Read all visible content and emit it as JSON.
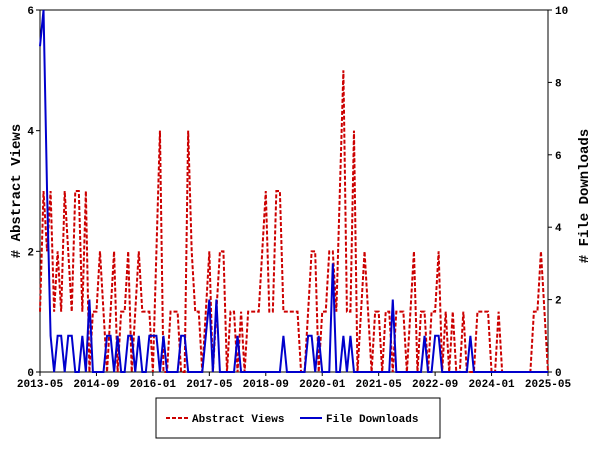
{
  "chart_data": {
    "type": "line",
    "y_label": "# Abstract Views",
    "y2_label": "# File Downloads",
    "x": [
      "2013-05",
      "2013-06",
      "2013-07",
      "2013-08",
      "2013-09",
      "2013-10",
      "2013-11",
      "2013-12",
      "2014-01",
      "2014-02",
      "2014-03",
      "2014-04",
      "2014-05",
      "2014-06",
      "2014-07",
      "2014-08",
      "2014-09",
      "2014-10",
      "2014-11",
      "2014-12",
      "2015-01",
      "2015-02",
      "2015-03",
      "2015-04",
      "2015-05",
      "2015-06",
      "2015-07",
      "2015-08",
      "2015-09",
      "2015-10",
      "2015-11",
      "2015-12",
      "2016-01",
      "2016-02",
      "2016-03",
      "2016-04",
      "2016-05",
      "2016-06",
      "2016-07",
      "2016-08",
      "2016-09",
      "2016-10",
      "2016-11",
      "2016-12",
      "2017-01",
      "2017-02",
      "2017-03",
      "2017-04",
      "2017-05",
      "2017-06",
      "2017-07",
      "2017-08",
      "2017-09",
      "2017-10",
      "2017-11",
      "2017-12",
      "2018-01",
      "2018-02",
      "2018-03",
      "2018-04",
      "2018-05",
      "2018-06",
      "2018-07",
      "2018-08",
      "2018-09",
      "2018-10",
      "2018-11",
      "2018-12",
      "2019-01",
      "2019-02",
      "2019-03",
      "2019-04",
      "2019-05",
      "2019-06",
      "2019-07",
      "2019-08",
      "2019-09",
      "2019-10",
      "2019-11",
      "2019-12",
      "2020-01",
      "2020-02",
      "2020-03",
      "2020-04",
      "2020-05",
      "2020-06",
      "2020-07",
      "2020-08",
      "2020-09",
      "2020-10",
      "2020-11",
      "2020-12",
      "2021-01",
      "2021-02",
      "2021-03",
      "2021-04",
      "2021-05",
      "2021-06",
      "2021-07",
      "2021-08",
      "2021-09",
      "2021-10",
      "2021-11",
      "2021-12",
      "2022-01",
      "2022-02",
      "2022-03",
      "2022-04",
      "2022-05",
      "2022-06",
      "2022-07",
      "2022-08",
      "2022-09",
      "2022-10",
      "2022-11",
      "2022-12",
      "2023-01",
      "2023-02",
      "2023-03",
      "2023-04",
      "2023-05",
      "2023-06",
      "2023-07",
      "2023-08",
      "2023-09",
      "2023-10",
      "2023-11",
      "2023-12",
      "2024-01",
      "2024-02",
      "2024-03",
      "2024-04",
      "2024-05",
      "2024-06",
      "2024-07",
      "2024-08",
      "2024-09",
      "2024-10",
      "2024-11",
      "2024-12",
      "2025-01",
      "2025-02",
      "2025-03",
      "2025-04",
      "2025-05"
    ],
    "series": [
      {
        "name": "Abstract Views",
        "color": "#cc0000",
        "dash": true,
        "values": [
          1,
          3,
          2,
          3,
          1,
          2,
          1,
          3,
          2,
          1,
          3,
          3,
          1,
          3,
          0,
          1,
          1,
          2,
          1,
          0,
          1,
          2,
          0,
          1,
          1,
          2,
          0,
          1,
          2,
          1,
          1,
          1,
          0,
          2,
          4,
          0,
          0,
          1,
          1,
          1,
          0,
          0,
          4,
          2,
          1,
          1,
          0,
          1,
          2,
          0,
          1,
          2,
          2,
          0,
          1,
          1,
          0,
          1,
          0,
          1,
          1,
          1,
          1,
          2,
          3,
          1,
          1,
          3,
          3,
          1,
          1,
          1,
          1,
          1,
          0,
          0,
          1,
          2,
          2,
          0,
          1,
          1,
          2,
          2,
          1,
          3,
          5,
          1,
          1,
          4,
          0,
          1,
          2,
          1,
          0,
          1,
          1,
          0,
          1,
          1,
          0,
          1,
          1,
          1,
          0,
          1,
          2,
          0,
          1,
          1,
          0,
          1,
          1,
          2,
          0,
          1,
          0,
          1,
          0,
          0,
          1,
          0,
          0,
          0,
          1,
          1,
          1,
          1,
          0,
          0,
          1,
          0,
          0,
          0,
          0,
          0,
          0,
          0,
          0,
          0,
          1,
          1,
          2,
          1,
          0
        ]
      },
      {
        "name": "File Downloads",
        "color": "#0000cc",
        "axis": "y2",
        "values": [
          9,
          10,
          5,
          1,
          0,
          1,
          1,
          0,
          1,
          1,
          0,
          0,
          1,
          0,
          2,
          0,
          0,
          0,
          0,
          1,
          1,
          0,
          1,
          0,
          0,
          1,
          1,
          0,
          1,
          0,
          0,
          1,
          1,
          1,
          0,
          1,
          0,
          0,
          0,
          0,
          1,
          1,
          0,
          0,
          0,
          0,
          0,
          1,
          2,
          0,
          2,
          0,
          0,
          0,
          0,
          0,
          1,
          0,
          0,
          0,
          0,
          0,
          0,
          0,
          0,
          0,
          0,
          0,
          0,
          1,
          0,
          0,
          0,
          0,
          0,
          0,
          1,
          1,
          0,
          1,
          0,
          0,
          0,
          3,
          0,
          0,
          1,
          0,
          1,
          0,
          0,
          0,
          0,
          0,
          0,
          0,
          0,
          0,
          0,
          0,
          2,
          0,
          0,
          0,
          0,
          0,
          0,
          0,
          0,
          1,
          0,
          0,
          1,
          1,
          0,
          0,
          0,
          0,
          0,
          0,
          0,
          0,
          1,
          0,
          0,
          0,
          0,
          0,
          0,
          0,
          0,
          0,
          0,
          0,
          0,
          0,
          0,
          0,
          0,
          0,
          0,
          0,
          0,
          0,
          0
        ]
      }
    ],
    "xlim": [
      "2013-05",
      "2025-05"
    ],
    "xticks": [
      "2013-05",
      "2014-09",
      "2016-01",
      "2017-05",
      "2018-09",
      "2020-01",
      "2021-05",
      "2022-09",
      "2024-01",
      "2025-05"
    ],
    "ylim": [
      0,
      6
    ],
    "yticks": [
      0,
      2,
      4,
      6
    ],
    "y2lim": [
      0,
      10
    ],
    "y2ticks": [
      0,
      2,
      4,
      6,
      8,
      10
    ]
  }
}
